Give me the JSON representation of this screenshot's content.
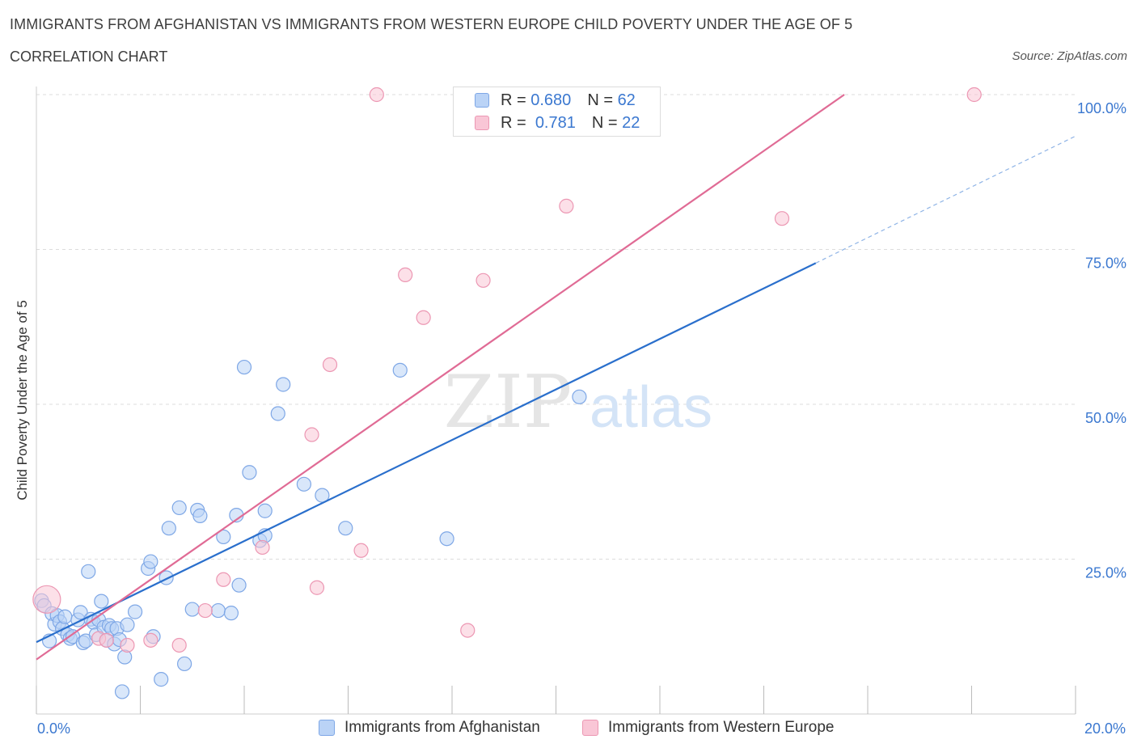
{
  "header": {
    "title": "IMMIGRANTS FROM AFGHANISTAN VS IMMIGRANTS FROM WESTERN EUROPE CHILD POVERTY UNDER THE AGE OF 5",
    "subtitle": "CORRELATION CHART",
    "source": "Source: ZipAtlas.com"
  },
  "watermark": {
    "zip": "ZIP",
    "atlas": "atlas"
  },
  "legend_top": {
    "r_label": "R =",
    "n_label": "N =",
    "series1": {
      "r": "0.680",
      "n": "62"
    },
    "series2": {
      "r": "0.781",
      "n": "22"
    }
  },
  "colors": {
    "blue_fill": "#bad3f6",
    "blue_stroke": "#7ea7e6",
    "blue_line": "#2a6fcc",
    "pink_fill": "#f9c6d6",
    "pink_stroke": "#ec97b3",
    "pink_line": "#e06b95",
    "axis_text": "#3b78d0",
    "grid": "#dddddd"
  },
  "chart_data": {
    "type": "scatter",
    "title": "IMMIGRANTS FROM AFGHANISTAN VS IMMIGRANTS FROM WESTERN EUROPE CHILD POVERTY UNDER THE AGE OF 5",
    "xlabel": "",
    "ylabel": "Child Poverty Under the Age of 5",
    "xlim": [
      0,
      20
    ],
    "ylim": [
      0,
      100
    ],
    "x_tick_labels": [
      "0.0%",
      "20.0%"
    ],
    "y_tick_labels": [
      "25.0%",
      "50.0%",
      "75.0%",
      "100.0%"
    ],
    "y_ticks": [
      25,
      50,
      75,
      100
    ],
    "legend_position": "bottom-center",
    "series": [
      {
        "name": "Immigrants from Afghanistan",
        "color": "blue",
        "r": 0.68,
        "n": 62,
        "trend": {
          "x0": 0,
          "y0": 11.6,
          "x1": 15.0,
          "y1": 72.8,
          "dash_to_x": 20.0,
          "dash_to_y": 93.3
        },
        "points": [
          [
            0.1,
            18.3
          ],
          [
            0.15,
            17.5
          ],
          [
            0.25,
            11.8
          ],
          [
            0.3,
            16.2
          ],
          [
            0.35,
            14.5
          ],
          [
            0.4,
            15.9
          ],
          [
            0.45,
            14.9
          ],
          [
            0.5,
            13.8
          ],
          [
            0.55,
            15.7
          ],
          [
            0.6,
            12.8
          ],
          [
            0.65,
            12.2
          ],
          [
            0.7,
            12.5
          ],
          [
            0.8,
            15.2
          ],
          [
            0.85,
            16.4
          ],
          [
            0.9,
            11.5
          ],
          [
            0.95,
            11.8
          ],
          [
            1.0,
            23.0
          ],
          [
            1.05,
            15.3
          ],
          [
            1.1,
            14.8
          ],
          [
            1.15,
            12.8
          ],
          [
            1.2,
            15.2
          ],
          [
            1.25,
            18.2
          ],
          [
            1.3,
            14.0
          ],
          [
            1.35,
            11.9
          ],
          [
            1.4,
            14.3
          ],
          [
            1.45,
            13.8
          ],
          [
            1.5,
            11.3
          ],
          [
            1.55,
            13.8
          ],
          [
            1.6,
            12.0
          ],
          [
            1.65,
            3.6
          ],
          [
            1.7,
            9.2
          ],
          [
            1.75,
            14.4
          ],
          [
            1.9,
            16.5
          ],
          [
            2.15,
            23.5
          ],
          [
            2.2,
            24.6
          ],
          [
            2.25,
            12.5
          ],
          [
            2.4,
            5.6
          ],
          [
            2.5,
            22.0
          ],
          [
            2.55,
            30.0
          ],
          [
            2.75,
            33.3
          ],
          [
            2.85,
            8.1
          ],
          [
            3.0,
            16.9
          ],
          [
            3.1,
            32.9
          ],
          [
            3.15,
            32.0
          ],
          [
            3.5,
            16.7
          ],
          [
            3.6,
            28.6
          ],
          [
            3.75,
            16.3
          ],
          [
            3.85,
            32.1
          ],
          [
            3.9,
            20.8
          ],
          [
            4.0,
            56.0
          ],
          [
            4.3,
            28.0
          ],
          [
            4.4,
            32.8
          ],
          [
            4.65,
            48.5
          ],
          [
            4.75,
            53.2
          ],
          [
            5.15,
            37.1
          ],
          [
            5.5,
            35.3
          ],
          [
            5.95,
            30.0
          ],
          [
            7.0,
            55.5
          ],
          [
            7.9,
            28.3
          ],
          [
            10.45,
            51.2
          ],
          [
            4.1,
            39.0
          ],
          [
            4.4,
            28.8
          ]
        ]
      },
      {
        "name": "Immigrants from Western Europe",
        "color": "pink",
        "r": 0.781,
        "n": 22,
        "trend": {
          "x0": 0,
          "y0": 8.8,
          "x1": 15.55,
          "y1": 100.0
        },
        "points": [
          [
            0.2,
            18.5
          ],
          [
            1.2,
            12.2
          ],
          [
            1.35,
            11.9
          ],
          [
            1.75,
            11.1
          ],
          [
            2.2,
            11.9
          ],
          [
            2.75,
            11.1
          ],
          [
            3.25,
            16.7
          ],
          [
            3.6,
            21.7
          ],
          [
            4.35,
            26.9
          ],
          [
            5.3,
            45.1
          ],
          [
            5.4,
            20.4
          ],
          [
            5.65,
            56.4
          ],
          [
            6.25,
            26.4
          ],
          [
            6.55,
            100.0
          ],
          [
            7.1,
            70.9
          ],
          [
            7.45,
            64.0
          ],
          [
            8.3,
            13.5
          ],
          [
            8.6,
            70.0
          ],
          [
            9.1,
            100.0
          ],
          [
            10.2,
            82.0
          ],
          [
            14.35,
            80.0
          ],
          [
            18.05,
            100.0
          ]
        ]
      }
    ]
  }
}
